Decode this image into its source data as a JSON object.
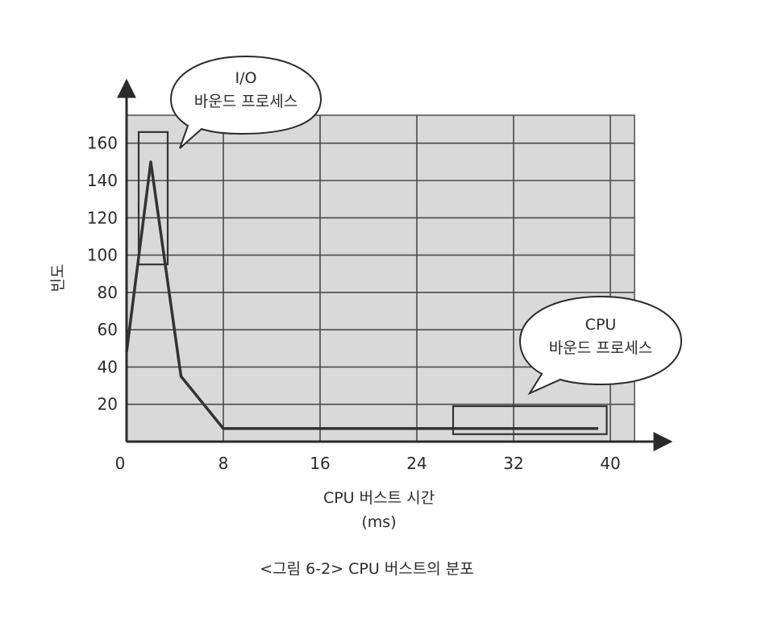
{
  "chart_data": {
    "type": "line",
    "xlabel": "CPU 버스트 시간",
    "xlabel_unit": "(ms)",
    "ylabel": "빈도",
    "caption": "<그림 6-2> CPU 버스트의 분포",
    "x_ticks": [
      0,
      8,
      16,
      24,
      32,
      40
    ],
    "y_ticks": [
      20,
      40,
      60,
      80,
      100,
      120,
      140,
      160
    ],
    "xlim": [
      0,
      42
    ],
    "ylim": [
      0,
      175
    ],
    "grid": true,
    "series": [
      {
        "x": [
          0,
          2,
          4.5,
          8,
          39
        ],
        "y": [
          48,
          150,
          35,
          7,
          7
        ]
      }
    ],
    "highlight_boxes": [
      {
        "x": [
          1,
          3.4
        ],
        "y": [
          95,
          166
        ]
      },
      {
        "x": [
          27,
          39.7
        ],
        "y": [
          4,
          19
        ]
      }
    ],
    "annotations": [
      {
        "line1": "I/O",
        "line2": "바운드 프로세스"
      },
      {
        "line1": "CPU",
        "line2": "바운드 프로세스"
      }
    ],
    "colors": {
      "plot_background": "#d9d9d9",
      "grid": "#4a4a4a",
      "line": "#333333",
      "axis": "#2a2a2a"
    }
  }
}
